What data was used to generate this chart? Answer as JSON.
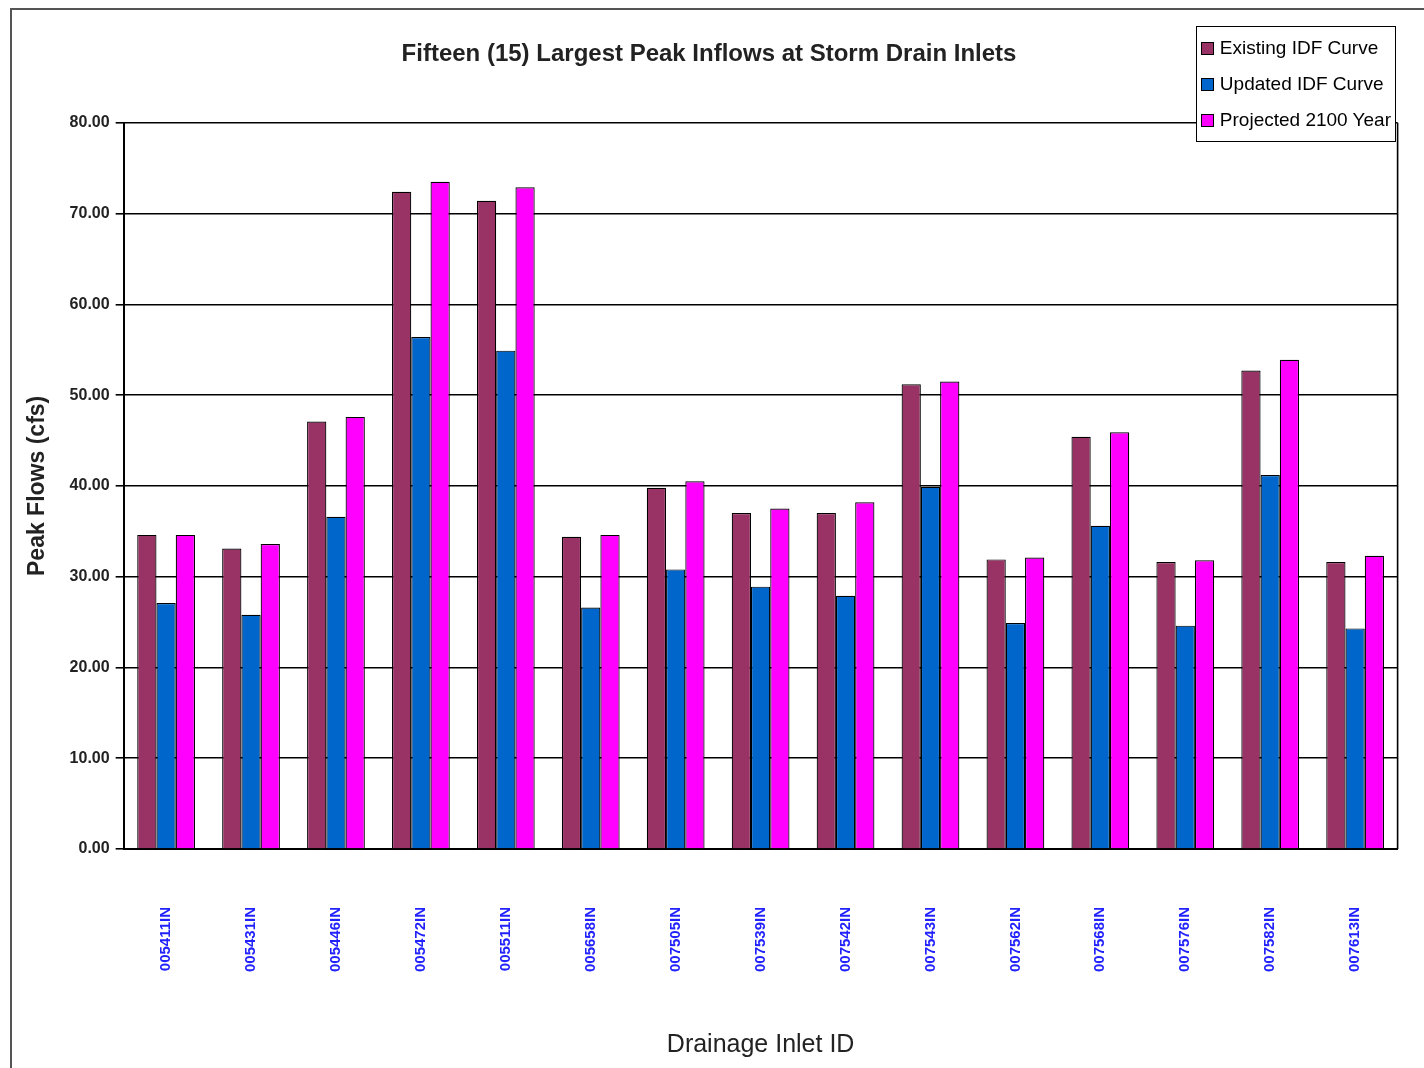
{
  "chart_data": {
    "type": "bar",
    "title": "Fifteen (15) Largest Peak Inflows at Storm Drain Inlets",
    "xlabel": "Drainage Inlet ID",
    "ylabel": "Peak Flows (cfs)",
    "categories": [
      "005411IN",
      "005431IN",
      "005446IN",
      "005472IN",
      "005511IN",
      "005658IN",
      "007505IN",
      "007539IN",
      "007542IN",
      "007543IN",
      "007562IN",
      "007568IN",
      "007576IN",
      "007582IN",
      "007613IN"
    ],
    "series": [
      {
        "name": "Existing IDF Curve",
        "color": "#993366",
        "values": [
          34.6,
          33.1,
          47.1,
          72.4,
          71.4,
          34.4,
          39.8,
          37.0,
          37.0,
          51.2,
          31.9,
          45.4,
          31.6,
          52.7,
          31.6
        ]
      },
      {
        "name": "Updated IDF Curve",
        "color": "#0066cc",
        "values": [
          27.1,
          25.8,
          36.6,
          56.4,
          54.9,
          26.6,
          30.8,
          28.9,
          27.9,
          39.9,
          24.9,
          35.6,
          24.6,
          41.2,
          24.3
        ]
      },
      {
        "name": "Projected 2100 Year",
        "color": "#ff00ff",
        "values": [
          34.6,
          33.6,
          47.6,
          73.5,
          72.9,
          34.6,
          40.5,
          37.5,
          38.2,
          51.5,
          32.1,
          45.9,
          31.8,
          53.9,
          32.3
        ]
      }
    ],
    "ylim": [
      0,
      80
    ],
    "yticks": [
      {
        "value": 0,
        "label": "0.00"
      },
      {
        "value": 10,
        "label": "10.00"
      },
      {
        "value": 20,
        "label": "20.00"
      },
      {
        "value": 30,
        "label": "30.00"
      },
      {
        "value": 40,
        "label": "40.00"
      },
      {
        "value": 50,
        "label": "50.00"
      },
      {
        "value": 60,
        "label": "60.00"
      },
      {
        "value": 70,
        "label": "70.00"
      },
      {
        "value": 80,
        "label": "80.00"
      }
    ],
    "grid": "y",
    "legend": "top right"
  }
}
